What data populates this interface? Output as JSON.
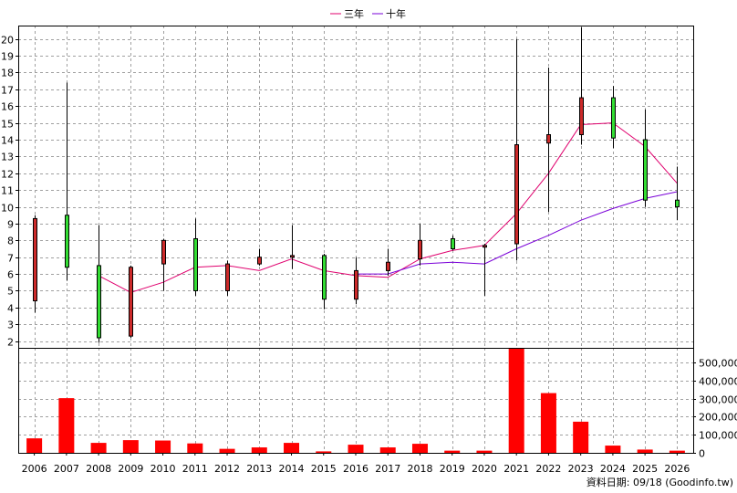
{
  "footer_text": "資料日期: 09/18 (Goodinfo.tw)",
  "chart_data": [
    {
      "type": "candlestick",
      "legend": [
        {
          "name": "三年",
          "color": "#e0006e"
        },
        {
          "name": "十年",
          "color": "#7a00d8"
        }
      ],
      "legend_position": "top-center",
      "grid": true,
      "ylim": [
        1.6,
        20.8
      ],
      "y_ticks": [
        "2",
        "3",
        "4",
        "5",
        "6",
        "7",
        "8",
        "9",
        "10",
        "11",
        "12",
        "13",
        "14",
        "15",
        "16",
        "17",
        "18",
        "19",
        "20"
      ],
      "categories": [
        "2006",
        "2007",
        "2008",
        "2009",
        "2010",
        "2011",
        "2012",
        "2013",
        "2014",
        "2015",
        "2016",
        "2017",
        "2018",
        "2019",
        "2020",
        "2021",
        "2022",
        "2023",
        "2024",
        "2025",
        "2026"
      ],
      "candles": [
        {
          "o": 4.4,
          "h": 9.5,
          "l": 3.7,
          "c": 9.3
        },
        {
          "o": 9.5,
          "h": 17.4,
          "l": 5.6,
          "c": 6.4
        },
        {
          "o": 6.5,
          "h": 8.9,
          "l": 1.9,
          "c": 2.2
        },
        {
          "o": 2.3,
          "h": 6.5,
          "l": 2.2,
          "c": 6.4
        },
        {
          "o": 6.6,
          "h": 8.1,
          "l": 5.0,
          "c": 8.0
        },
        {
          "o": 8.1,
          "h": 9.3,
          "l": 4.7,
          "c": 5.0
        },
        {
          "o": 5.0,
          "h": 6.8,
          "l": 4.7,
          "c": 6.6
        },
        {
          "o": 6.6,
          "h": 7.5,
          "l": 6.5,
          "c": 7.0
        },
        {
          "o": 7.0,
          "h": 8.9,
          "l": 6.3,
          "c": 7.1
        },
        {
          "o": 7.1,
          "h": 7.2,
          "l": 3.9,
          "c": 4.5
        },
        {
          "o": 4.5,
          "h": 7.0,
          "l": 4.2,
          "c": 6.2
        },
        {
          "o": 6.2,
          "h": 7.5,
          "l": 5.9,
          "c": 6.7
        },
        {
          "o": 6.9,
          "h": 9.0,
          "l": 6.5,
          "c": 8.0
        },
        {
          "o": 8.1,
          "h": 8.3,
          "l": 7.4,
          "c": 7.5
        },
        {
          "o": 7.6,
          "h": 7.8,
          "l": 4.7,
          "c": 7.7
        },
        {
          "o": 7.8,
          "h": 20.0,
          "l": 6.8,
          "c": 13.7
        },
        {
          "o": 13.8,
          "h": 18.3,
          "l": 9.7,
          "c": 14.3
        },
        {
          "o": 14.3,
          "h": 20.7,
          "l": 13.7,
          "c": 16.5
        },
        {
          "o": 16.5,
          "h": 17.2,
          "l": 13.5,
          "c": 14.1
        },
        {
          "o": 14.0,
          "h": 15.8,
          "l": 10.0,
          "c": 10.4
        },
        {
          "o": 10.4,
          "h": 12.4,
          "l": 9.2,
          "c": 10.0
        }
      ],
      "series": [
        {
          "name": "三年",
          "color": "#e0006e",
          "values": [
            null,
            null,
            5.9,
            4.9,
            5.5,
            6.4,
            6.5,
            6.2,
            6.9,
            6.2,
            5.9,
            5.8,
            6.9,
            7.4,
            7.7,
            9.6,
            12.0,
            14.9,
            15.0,
            13.6,
            11.4
          ]
        },
        {
          "name": "十年",
          "color": "#7a00d8",
          "values": [
            null,
            null,
            null,
            null,
            null,
            null,
            null,
            null,
            null,
            null,
            6.0,
            6.0,
            6.6,
            6.7,
            6.6,
            7.5,
            8.3,
            9.2,
            9.9,
            10.5,
            10.9
          ]
        }
      ]
    },
    {
      "type": "bar",
      "ylim": [
        0,
        580000
      ],
      "y_ticks": [
        "0",
        "100,000",
        "200,000",
        "300,000",
        "400,000",
        "500,000"
      ],
      "color": "#ff0000",
      "categories": [
        "2006",
        "2007",
        "2008",
        "2009",
        "2010",
        "2011",
        "2012",
        "2013",
        "2014",
        "2015",
        "2016",
        "2017",
        "2018",
        "2019",
        "2020",
        "2021",
        "2022",
        "2023",
        "2024",
        "2025",
        "2026"
      ],
      "values": [
        80000,
        302000,
        55000,
        70000,
        68000,
        52000,
        22000,
        30000,
        55000,
        8000,
        45000,
        30000,
        50000,
        12000,
        12000,
        575000,
        330000,
        172000,
        40000,
        18000,
        12000
      ]
    }
  ]
}
